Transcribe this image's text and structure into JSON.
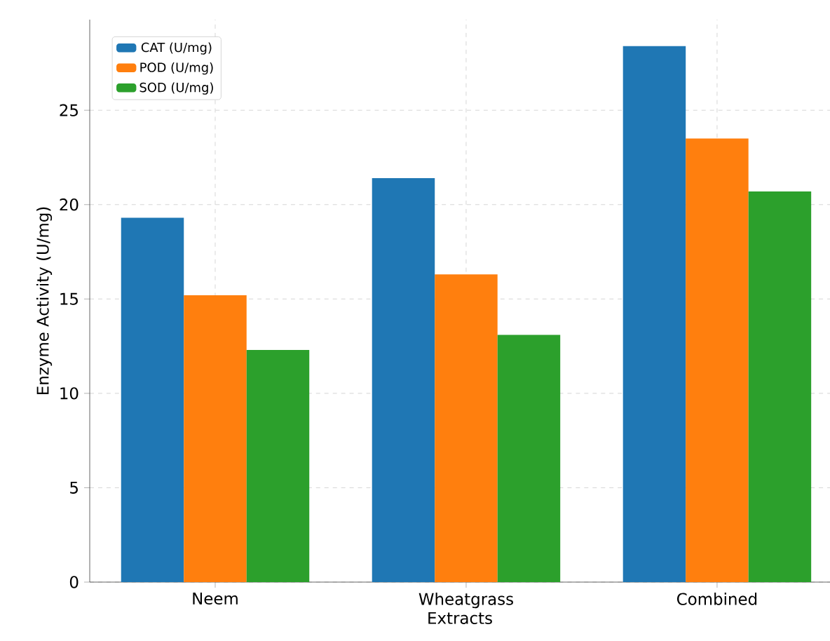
{
  "chart_data": {
    "type": "bar",
    "xlabel": "Extracts",
    "ylabel": "Enzyme Activity (U/mg)",
    "categories": [
      "Neem",
      "Wheatgrass",
      "Combined"
    ],
    "series": [
      {
        "name": "CAT (U/mg)",
        "color": "#1f77b4",
        "values": [
          19.3,
          21.4,
          28.4
        ]
      },
      {
        "name": "POD (U/mg)",
        "color": "#ff7f0e",
        "values": [
          15.2,
          16.3,
          23.5
        ]
      },
      {
        "name": "SOD (U/mg)",
        "color": "#2ca02c",
        "values": [
          12.3,
          13.1,
          20.7
        ]
      }
    ],
    "ylim": [
      0,
      29.8
    ],
    "yticks": [
      0,
      5,
      10,
      15,
      20,
      25
    ],
    "grid": true,
    "legend": "top left"
  }
}
